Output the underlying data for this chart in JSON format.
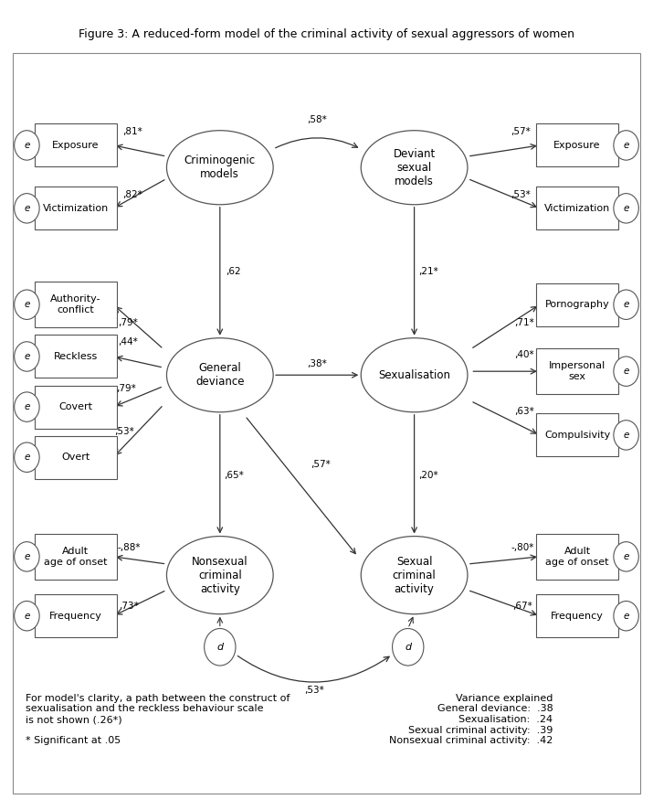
{
  "title": "Figure 3: A reduced-form model of the criminal activity of sexual aggressors of women",
  "title_fontsize": 9,
  "bg_color": "#ffffff",
  "box_color": "#ffffff",
  "box_edge_color": "#555555",
  "ellipse_color": "#ffffff",
  "ellipse_edge_color": "#555555",
  "arrow_color": "#333333",
  "text_color": "#000000",
  "footnote_left": "For model's clarity, a path between the construct of\nsexualisation and the reckless behaviour scale\nis not shown (.26*)\n\n* Significant at .05",
  "variance_text": "Variance explained\nGeneral deviance:  .38\nSexualisation:  .24\nSexual criminal activity:  .39\nNonsexual criminal activity:  .42"
}
